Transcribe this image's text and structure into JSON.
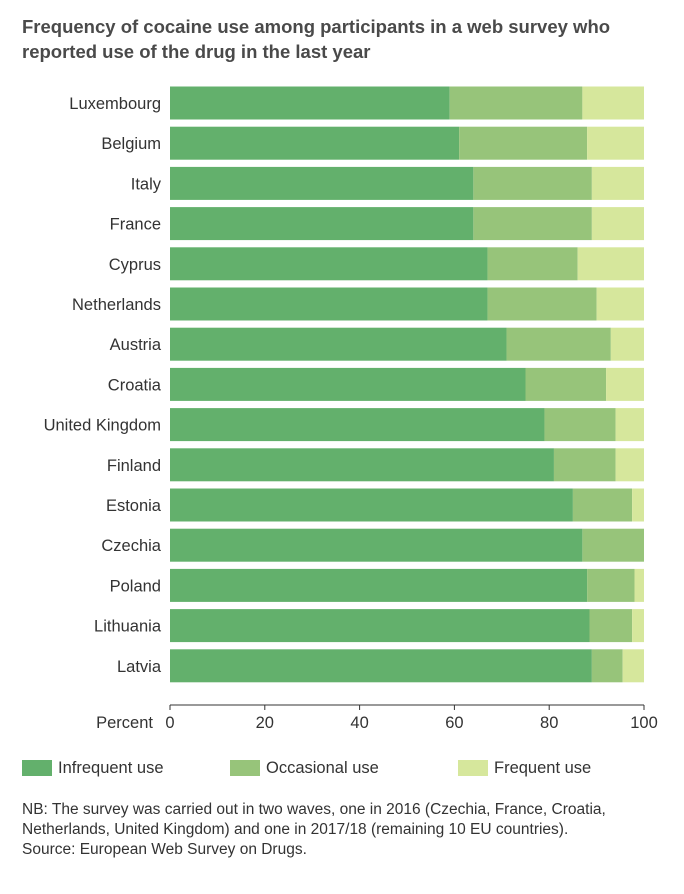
{
  "chart_data": {
    "type": "bar",
    "orientation": "horizontal",
    "stacked": true,
    "title": "Frequency of cocaine use among participants in a web survey who reported use of the drug in the last year",
    "xlabel": "Percent",
    "xlim": [
      0,
      100
    ],
    "xticks": [
      "0",
      "20",
      "40",
      "60",
      "80",
      "100"
    ],
    "categories": [
      "Luxembourg",
      "Belgium",
      "Italy",
      "France",
      "Cyprus",
      "Netherlands",
      "Austria",
      "Croatia",
      "United Kingdom",
      "Finland",
      "Estonia",
      "Czechia",
      "Poland",
      "Lithuania",
      "Latvia"
    ],
    "series": [
      {
        "name": "Infrequent use",
        "color": "#63b06c",
        "values": [
          59,
          61,
          64,
          64,
          67,
          67,
          71,
          75,
          79,
          81,
          85,
          87,
          88,
          88.5,
          89
        ]
      },
      {
        "name": "Occasional use",
        "color": "#97c47a",
        "values": [
          28,
          27,
          25,
          25,
          19,
          23,
          22,
          17,
          15,
          13,
          12.5,
          13,
          10,
          9,
          6.5
        ]
      },
      {
        "name": "Frequent use",
        "color": "#d6e79c",
        "values": [
          13,
          12,
          11,
          11,
          14,
          10,
          7,
          8,
          6,
          6,
          2.5,
          0,
          2,
          2.5,
          4.5
        ]
      }
    ],
    "legend_position": "bottom",
    "grid": false
  },
  "footnote": {
    "nb": "NB: The survey was carried out in two waves, one in 2016 (Czechia, France, Croatia, Netherlands, United Kingdom) and one in 2017/18 (remaining 10 EU countries).",
    "source": "Source: European Web Survey on Drugs."
  }
}
